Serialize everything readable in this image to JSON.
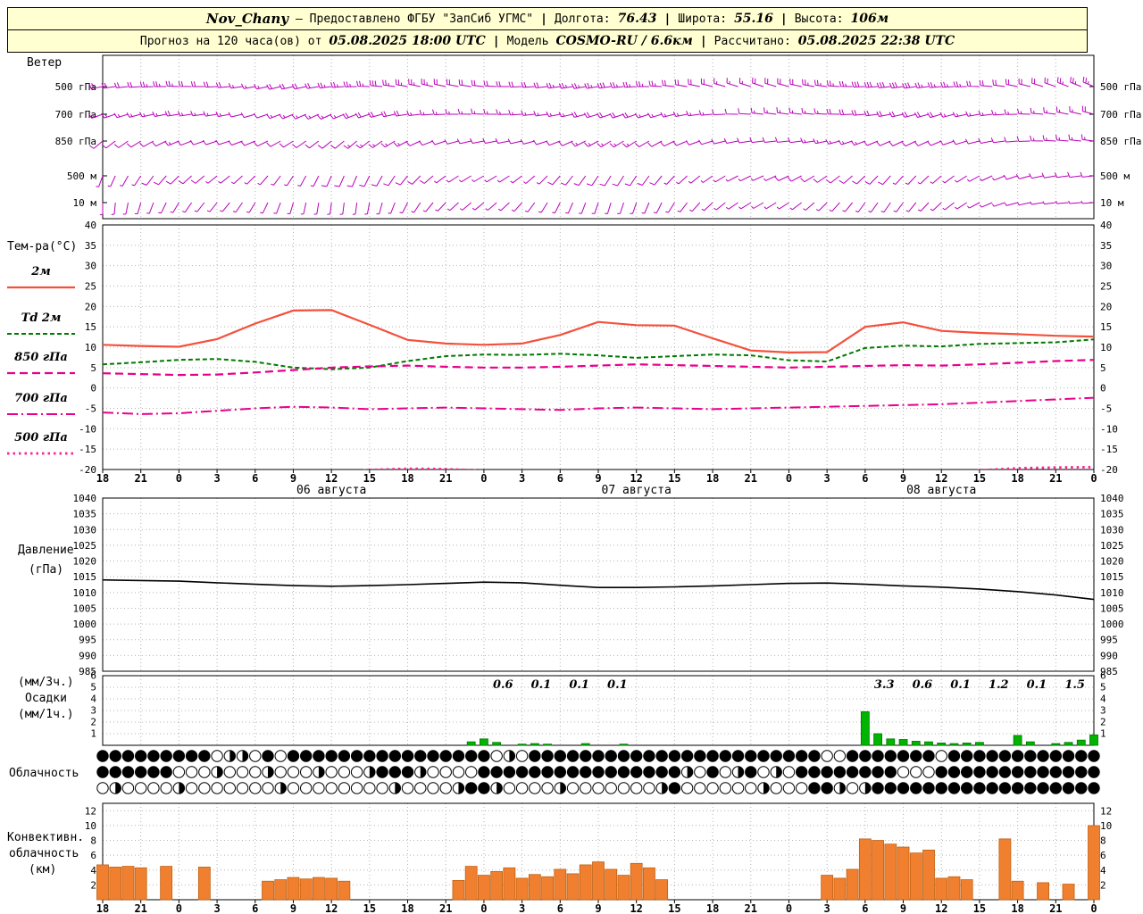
{
  "header": {
    "station": "Nov_Chany",
    "provided_by": "— Предоставлено ФГБУ \"ЗапСиб УГМС\"",
    "sep": "|",
    "lon_label": "Долгота:",
    "lon_value": "76.43",
    "lat_label": "Широта:",
    "lat_value": "55.16",
    "alt_label": "Высота:",
    "alt_value": "106м",
    "forecast_label": "Прогноз на 120 часа(ов) от",
    "forecast_value": "05.08.2025 18:00 UTC",
    "model_label": "Модель",
    "model_value": "COSMO-RU / 6.6км",
    "calc_label": "Рассчитано:",
    "calc_value": "05.08.2025 22:38 UTC"
  },
  "labels": {
    "wind": "Ветер",
    "temp": "Тем-ра(°C)",
    "pressure1": "Давление",
    "pressure2": "(гПа)",
    "precip1": "(мм/3ч.)",
    "precip2": "Осадки",
    "precip3": "(мм/1ч.)",
    "cloud": "Облачность",
    "conv1": "Конвективн.",
    "conv2": "облачность",
    "conv3": "(км)"
  },
  "colors": {
    "header_bg": "#ffffd2",
    "barb": "#bb00bb",
    "precip": "#00b400",
    "precip_edge": "#007700",
    "convective": "#f08030",
    "convective_edge": "#c06010",
    "pressure": "#000000"
  },
  "chart_data": {
    "type": "meteogram",
    "hours": [
      "18",
      "21",
      "0",
      "3",
      "6",
      "9",
      "12",
      "15",
      "18",
      "21",
      "0",
      "3",
      "6",
      "9",
      "12",
      "15",
      "18",
      "21",
      "0",
      "3",
      "6",
      "9",
      "12",
      "15",
      "18",
      "21",
      "0"
    ],
    "day_labels": [
      {
        "text": "06 августа",
        "tick": 6
      },
      {
        "text": "07 августа",
        "tick": 14
      },
      {
        "text": "08 августа",
        "tick": 22
      }
    ],
    "wind": {
      "rows": [
        {
          "level": "500 гПа",
          "dirs": [
            260,
            264,
            268,
            272,
            270,
            265,
            260,
            256,
            258,
            263,
            269,
            275,
            280,
            283,
            281,
            276,
            270,
            266,
            262,
            260,
            262,
            267,
            273,
            279,
            284,
            287,
            288,
            285,
            280,
            274,
            268,
            264,
            262,
            265,
            269,
            275,
            281,
            287,
            291,
            293
          ],
          "speeds": [
            20,
            22,
            25,
            25,
            22,
            20,
            18,
            20,
            22,
            25,
            28,
            30,
            28,
            25,
            22,
            20,
            20,
            22,
            25,
            28,
            30,
            28,
            25,
            22,
            20,
            18,
            20,
            22,
            25,
            28,
            30,
            32,
            30,
            28,
            25,
            22,
            20,
            22,
            25,
            28
          ]
        },
        {
          "level": "700 гПа",
          "dirs": [
            250,
            253,
            257,
            261,
            262,
            259,
            254,
            249,
            246,
            245,
            249,
            255,
            261,
            266,
            270,
            272,
            269,
            264,
            259,
            255,
            252,
            251,
            253,
            259,
            265,
            271,
            276,
            278,
            275,
            271,
            265,
            259,
            255,
            254,
            257,
            263,
            269,
            275,
            281,
            285
          ],
          "speeds": [
            15,
            16,
            18,
            20,
            18,
            15,
            14,
            15,
            16,
            18,
            20,
            22,
            20,
            18,
            16,
            15,
            15,
            16,
            18,
            20,
            22,
            20,
            18,
            16,
            15,
            14,
            15,
            16,
            18,
            20,
            22,
            24,
            22,
            20,
            18,
            16,
            15,
            16,
            18,
            20
          ]
        },
        {
          "level": "850 гПа",
          "dirs": [
            230,
            235,
            241,
            247,
            251,
            252,
            247,
            241,
            235,
            231,
            230,
            235,
            242,
            249,
            255,
            259,
            259,
            255,
            249,
            243,
            239,
            238,
            241,
            247,
            253,
            259,
            263,
            264,
            261,
            255,
            249,
            246,
            244,
            247,
            253,
            259,
            265,
            271,
            275,
            277
          ],
          "speeds": [
            10,
            12,
            14,
            15,
            14,
            12,
            10,
            10,
            12,
            14,
            15,
            16,
            15,
            14,
            12,
            10,
            10,
            12,
            14,
            15,
            16,
            15,
            14,
            12,
            10,
            10,
            12,
            14,
            15,
            16,
            15,
            14,
            12,
            10,
            10,
            12,
            14,
            15,
            16,
            15
          ]
        },
        {
          "level": "500 м",
          "dirs": [
            200,
            209,
            217,
            225,
            230,
            231,
            225,
            217,
            209,
            204,
            203,
            209,
            219,
            229,
            237,
            240,
            237,
            229,
            221,
            215,
            212,
            213,
            219,
            227,
            235,
            242,
            246,
            245,
            239,
            232,
            226,
            222,
            223,
            229,
            237,
            245,
            252,
            258,
            262,
            264
          ],
          "speeds": [
            8,
            9,
            10,
            12,
            10,
            9,
            8,
            8,
            9,
            10,
            12,
            13,
            12,
            10,
            9,
            8,
            8,
            9,
            10,
            12,
            13,
            12,
            10,
            9,
            8,
            8,
            9,
            10,
            12,
            13,
            12,
            10,
            9,
            8,
            8,
            9,
            10,
            12,
            13,
            12
          ]
        },
        {
          "level": "10 м",
          "dirs": [
            180,
            191,
            201,
            211,
            218,
            219,
            211,
            201,
            192,
            187,
            187,
            195,
            207,
            219,
            228,
            231,
            227,
            217,
            207,
            200,
            197,
            199,
            207,
            217,
            227,
            236,
            240,
            237,
            229,
            222,
            216,
            215,
            219,
            227,
            237,
            247,
            255,
            261,
            265,
            266
          ],
          "speeds": [
            5,
            6,
            7,
            8,
            7,
            6,
            5,
            5,
            6,
            7,
            8,
            9,
            8,
            7,
            6,
            5,
            5,
            6,
            7,
            8,
            9,
            8,
            7,
            6,
            5,
            5,
            6,
            7,
            8,
            9,
            8,
            7,
            6,
            5,
            5,
            6,
            7,
            8,
            9,
            8
          ]
        }
      ]
    },
    "temperature": {
      "ylim": [
        -20,
        40
      ],
      "ytick_step": 5,
      "series": [
        {
          "name": "2м",
          "color": "#f4503c",
          "dash": "",
          "width": 2.2,
          "values": [
            10.6,
            10.3,
            10.1,
            12.0,
            15.8,
            19.0,
            19.1,
            15.5,
            11.8,
            10.9,
            10.6,
            10.9,
            13.0,
            16.2,
            15.4,
            15.3,
            12.2,
            9.2,
            8.7,
            8.8,
            15.0,
            16.1,
            14.0,
            13.5,
            13.2,
            12.8,
            12.6
          ]
        },
        {
          "name": "Td 2м",
          "color": "#007a00",
          "dash": "5,3",
          "width": 2,
          "values": [
            5.8,
            6.3,
            6.9,
            7.1,
            6.4,
            5.0,
            4.6,
            5.0,
            6.6,
            7.8,
            8.2,
            8.1,
            8.4,
            8.0,
            7.4,
            7.8,
            8.2,
            8.0,
            6.8,
            6.5,
            9.8,
            10.4,
            10.2,
            10.8,
            11.0,
            11.2,
            11.9
          ]
        },
        {
          "name": "850 гПа",
          "color": "#e8008c",
          "dash": "9,5",
          "width": 2.2,
          "values": [
            3.6,
            3.4,
            3.2,
            3.3,
            3.8,
            4.4,
            5.0,
            5.3,
            5.5,
            5.2,
            5.0,
            5.0,
            5.2,
            5.5,
            5.8,
            5.6,
            5.4,
            5.2,
            5.0,
            5.2,
            5.4,
            5.6,
            5.5,
            5.8,
            6.2,
            6.6,
            6.9
          ]
        },
        {
          "name": "700 гПа",
          "color": "#e8008c",
          "dash": "12,4,2,4",
          "width": 2,
          "values": [
            -6.0,
            -6.4,
            -6.2,
            -5.6,
            -5.0,
            -4.6,
            -4.8,
            -5.2,
            -5.0,
            -4.8,
            -5.0,
            -5.2,
            -5.4,
            -5.0,
            -4.8,
            -5.0,
            -5.2,
            -5.0,
            -4.8,
            -4.6,
            -4.4,
            -4.2,
            -4.0,
            -3.6,
            -3.2,
            -2.8,
            -2.4
          ]
        },
        {
          "name": "500 гПа",
          "color": "#ff2090",
          "dash": "2.5,4",
          "width": 2.8,
          "values": [
            -22.0,
            -22.5,
            -23.0,
            -22.5,
            -22.0,
            -21.5,
            -21.0,
            -20.1,
            -19.8,
            -19.9,
            -20.3,
            -20.8,
            -21.2,
            -21.8,
            -22.0,
            -21.8,
            -21.4,
            -21.2,
            -21.4,
            -21.8,
            -22.0,
            -21.6,
            -21.2,
            -20.2,
            -19.7,
            -19.5,
            -19.4
          ]
        }
      ]
    },
    "pressure": {
      "ylim": [
        985,
        1040
      ],
      "ytick_step": 5,
      "values": [
        1014.0,
        1013.8,
        1013.6,
        1013.1,
        1012.6,
        1012.2,
        1012.0,
        1012.2,
        1012.5,
        1012.9,
        1013.3,
        1013.1,
        1012.3,
        1011.6,
        1011.6,
        1011.8,
        1012.1,
        1012.5,
        1012.9,
        1013.0,
        1012.6,
        1012.1,
        1011.7,
        1011.1,
        1010.3,
        1009.2,
        1007.8
      ]
    },
    "precipitation": {
      "ylim": [
        0,
        6
      ],
      "yticks": [
        1,
        2,
        3,
        4,
        5,
        6
      ],
      "labels": [
        {
          "tick": 10.5,
          "text": "0.6"
        },
        {
          "tick": 11.5,
          "text": "0.1"
        },
        {
          "tick": 12.5,
          "text": "0.1"
        },
        {
          "tick": 13.5,
          "text": "0.1"
        },
        {
          "tick": 20.5,
          "text": "3.3"
        },
        {
          "tick": 21.5,
          "text": "0.6"
        },
        {
          "tick": 22.5,
          "text": "0.1"
        },
        {
          "tick": 23.5,
          "text": "1.2"
        },
        {
          "tick": 24.5,
          "text": "0.1"
        },
        {
          "tick": 25.5,
          "text": "1.5"
        }
      ],
      "bars": [
        [
          29,
          0.3
        ],
        [
          30,
          0.55
        ],
        [
          31,
          0.25
        ],
        [
          33,
          0.1
        ],
        [
          34,
          0.15
        ],
        [
          35,
          0.1
        ],
        [
          38,
          0.15
        ],
        [
          41,
          0.1
        ],
        [
          60,
          2.9
        ],
        [
          61,
          1.0
        ],
        [
          62,
          0.55
        ],
        [
          63,
          0.5
        ],
        [
          64,
          0.35
        ],
        [
          65,
          0.3
        ],
        [
          66,
          0.2
        ],
        [
          67,
          0.15
        ],
        [
          68,
          0.2
        ],
        [
          69,
          0.25
        ],
        [
          72,
          0.85
        ],
        [
          73,
          0.3
        ],
        [
          75,
          0.15
        ],
        [
          76,
          0.25
        ],
        [
          77,
          0.45
        ],
        [
          78,
          0.9
        ]
      ]
    },
    "cloud": {
      "rows": [
        "4444444440220404444444444444444020444444444444444444444440044444440444444444444",
        "4444440002000200020002444200004444444444444444204024020444444440004444444444444",
        "0200002000000020000000020000244200002000000024000000200044202444444444444444444"
      ]
    },
    "convective": {
      "ylim": [
        0,
        13
      ],
      "yticks": [
        2,
        4,
        6,
        8,
        10,
        12
      ],
      "bars": [
        [
          0,
          4.7
        ],
        [
          1,
          4.4
        ],
        [
          2,
          4.5
        ],
        [
          3,
          4.3
        ],
        [
          5,
          4.5
        ],
        [
          8,
          4.4
        ],
        [
          13,
          2.5
        ],
        [
          14,
          2.7
        ],
        [
          15,
          3.0
        ],
        [
          16,
          2.8
        ],
        [
          17,
          3.0
        ],
        [
          18,
          2.9
        ],
        [
          19,
          2.5
        ],
        [
          28,
          2.6
        ],
        [
          29,
          4.5
        ],
        [
          30,
          3.3
        ],
        [
          31,
          3.8
        ],
        [
          32,
          4.3
        ],
        [
          33,
          2.9
        ],
        [
          34,
          3.4
        ],
        [
          35,
          3.1
        ],
        [
          36,
          4.1
        ],
        [
          37,
          3.5
        ],
        [
          38,
          4.7
        ],
        [
          39,
          5.1
        ],
        [
          40,
          4.1
        ],
        [
          41,
          3.3
        ],
        [
          42,
          4.9
        ],
        [
          43,
          4.3
        ],
        [
          44,
          2.7
        ],
        [
          57,
          3.3
        ],
        [
          58,
          2.9
        ],
        [
          59,
          4.1
        ],
        [
          60,
          8.2
        ],
        [
          61,
          8.0
        ],
        [
          62,
          7.5
        ],
        [
          63,
          7.1
        ],
        [
          64,
          6.3
        ],
        [
          65,
          6.7
        ],
        [
          66,
          2.9
        ],
        [
          67,
          3.1
        ],
        [
          68,
          2.7
        ],
        [
          71,
          8.2
        ],
        [
          72,
          2.5
        ],
        [
          74,
          2.3
        ],
        [
          76,
          2.1
        ],
        [
          78,
          10.0
        ]
      ]
    }
  }
}
